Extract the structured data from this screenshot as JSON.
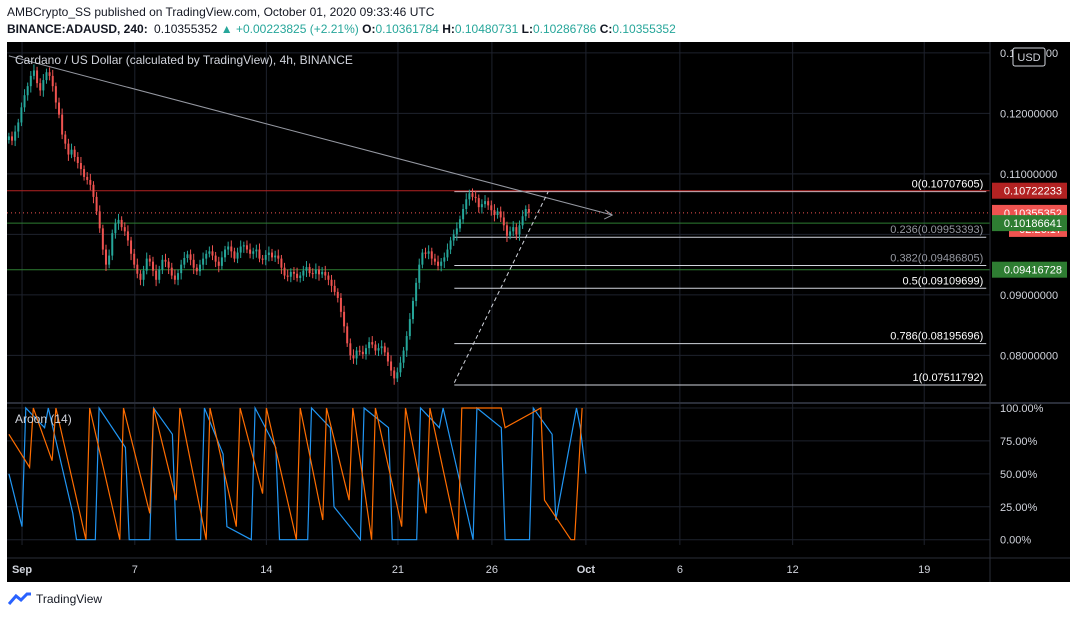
{
  "header": {
    "line1": "AMBCrypto_SS published on TradingView.com, October 01, 2020 09:33:46 UTC",
    "symbol": "BINANCE:ADAUSD, 240",
    "last": "0.10355352",
    "change": "▲ +0.00223825 (+2.21%)",
    "o_label": "O:",
    "o_value": "0.10361784",
    "h_label": "H:",
    "h_value": "0.10480731",
    "l_label": "L:",
    "l_value": "0.10286786",
    "c_label": "C:",
    "c_value": "0.10355352"
  },
  "chart": {
    "title": "Cardano / US Dollar (calculated by TradingView), 4h, BINANCE",
    "currency": "USD",
    "countdown": "02:26:17",
    "aroon_label": "Aroon (14)"
  },
  "footer": {
    "brand": "TradingView"
  },
  "colors": {
    "up": "#26a69a",
    "down": "#ef5350",
    "aroon_up": "#2196f3",
    "aroon_down": "#ff6d00",
    "resistance": "#b22222",
    "support": "#2e7d32"
  },
  "chart_data": [
    {
      "type": "candlestick",
      "title": "Cardano / US Dollar (calculated by TradingView), 4h, BINANCE",
      "x_axis": {
        "tick_labels": [
          "Sep",
          "7",
          "14",
          "21",
          "26",
          "Oct",
          "6",
          "12",
          "19"
        ],
        "tick_days": [
          1,
          7,
          14,
          21,
          26,
          31,
          36,
          42,
          49
        ],
        "range_days": [
          0.2,
          52.5
        ]
      },
      "y_axis": {
        "tick_labels": [
          "0.13000000",
          "0.12000000",
          "0.11000000",
          "0.09000000",
          "0.08000000"
        ],
        "ticks": [
          0.13,
          0.12,
          0.11,
          0.09,
          0.08
        ],
        "range": [
          0.0723,
          0.1318
        ]
      },
      "closes_4h": [
        0.1162,
        0.1155,
        0.117,
        0.1185,
        0.121,
        0.123,
        0.1245,
        0.1262,
        0.1271,
        0.125,
        0.1238,
        0.1255,
        0.1268,
        0.1262,
        0.1245,
        0.1218,
        0.1198,
        0.1165,
        0.115,
        0.1132,
        0.114,
        0.1128,
        0.1118,
        0.1108,
        0.1095,
        0.109,
        0.1082,
        0.1062,
        0.1038,
        0.101,
        0.0975,
        0.095,
        0.0965,
        0.1002,
        0.1018,
        0.1024,
        0.1012,
        0.1005,
        0.099,
        0.0968,
        0.095,
        0.0935,
        0.0925,
        0.094,
        0.096,
        0.0955,
        0.094,
        0.0925,
        0.0942,
        0.0958,
        0.0955,
        0.0945,
        0.0932,
        0.0925,
        0.0936,
        0.095,
        0.0961,
        0.0967,
        0.0958,
        0.0945,
        0.0939,
        0.095,
        0.096,
        0.0968,
        0.0972,
        0.0965,
        0.0955,
        0.0948,
        0.0962,
        0.0975,
        0.098,
        0.0972,
        0.096,
        0.097,
        0.098,
        0.0982,
        0.0975,
        0.0968,
        0.0972,
        0.0975,
        0.096,
        0.0958,
        0.0966,
        0.097,
        0.0962,
        0.0965,
        0.096,
        0.0945,
        0.0932,
        0.093,
        0.0938,
        0.0935,
        0.0928,
        0.0932,
        0.094,
        0.0946,
        0.0936,
        0.0935,
        0.0942,
        0.0934,
        0.0938,
        0.0932,
        0.0925,
        0.0915,
        0.0905,
        0.0895,
        0.0872,
        0.0848,
        0.082,
        0.08,
        0.0795,
        0.0808,
        0.0806,
        0.0802,
        0.0812,
        0.0822,
        0.0818,
        0.0808,
        0.0812,
        0.0815,
        0.0805,
        0.079,
        0.0775,
        0.0762,
        0.0772,
        0.0788,
        0.0808,
        0.0832,
        0.086,
        0.089,
        0.092,
        0.095,
        0.097,
        0.0968,
        0.0972,
        0.096,
        0.0955,
        0.0948,
        0.0955,
        0.0962,
        0.0975,
        0.099,
        0.1,
        0.101,
        0.1025,
        0.1042,
        0.1058,
        0.1068,
        0.1062,
        0.106,
        0.1045,
        0.105,
        0.1055,
        0.1048,
        0.104,
        0.1032,
        0.1038,
        0.1028,
        0.1015,
        0.0998,
        0.1005,
        0.1012,
        0.1,
        0.1015,
        0.103,
        0.1042,
        0.1036
      ],
      "fibonacci": [
        {
          "label": "0(0.10707605)",
          "value": 0.10707605
        },
        {
          "label": "0.236(0.09953393)",
          "value": 0.09953393
        },
        {
          "label": "0.382(0.09486805)",
          "value": 0.09486805
        },
        {
          "label": "0.5(0.09109699)",
          "value": 0.09109699
        },
        {
          "label": "0.786(0.08195696)",
          "value": 0.08195696
        },
        {
          "label": "1(0.07511792)",
          "value": 0.07511792
        }
      ],
      "horizontal_levels": [
        {
          "value": 0.10722233,
          "label": "0.10722233",
          "role": "resistance"
        },
        {
          "value": 0.10186641,
          "label": "0.10186641",
          "role": "support"
        },
        {
          "value": 0.09416728,
          "label": "0.09416728",
          "role": "support"
        }
      ],
      "last_price": {
        "value": 0.10355352,
        "label": "0.10355352"
      },
      "trendline": {
        "start_day": 0.3,
        "start_value": 0.1295,
        "end_day": 32.4,
        "end_value": 0.1032
      },
      "projection_line": [
        {
          "day": 24.0,
          "value": 0.0755
        },
        {
          "day": 29.0,
          "value": 0.1071
        }
      ]
    },
    {
      "type": "line",
      "title": "Aroon (14)",
      "y_axis": {
        "tick_labels": [
          "100.00%",
          "75.00%",
          "50.00%",
          "25.00%",
          "0.00%"
        ],
        "ticks": [
          100,
          75,
          50,
          25,
          0
        ],
        "range": [
          -4,
          103
        ]
      },
      "series": [
        {
          "name": "Aroon Up",
          "color": "#2196f3",
          "day": [
            0.3,
            1.0,
            1.2,
            2.2,
            2.4,
            3.7,
            3.9,
            4.9,
            5.1,
            6.5,
            6.7,
            7.8,
            8.0,
            9.0,
            9.2,
            10.5,
            10.7,
            11.7,
            11.9,
            13.2,
            13.4,
            14.5,
            14.7,
            16.2,
            16.4,
            17.4,
            17.6,
            19.0,
            19.2,
            20.5,
            20.7,
            22.0,
            22.2,
            23.2,
            23.4,
            25.0,
            25.2,
            26.5,
            26.7,
            28.0,
            28.2,
            29.2,
            29.4,
            30.5,
            30.7,
            31.0
          ],
          "values": [
            50,
            10,
            100,
            85,
            100,
            20,
            0,
            0,
            100,
            70,
            0,
            0,
            100,
            80,
            0,
            0,
            100,
            65,
            10,
            0,
            100,
            70,
            0,
            0,
            100,
            85,
            25,
            0,
            100,
            85,
            0,
            0,
            100,
            85,
            100,
            0,
            100,
            85,
            0,
            0,
            100,
            80,
            15,
            100,
            85,
            50
          ]
        },
        {
          "name": "Aroon Down",
          "color": "#ff6d00",
          "day": [
            0.3,
            1.4,
            1.6,
            2.6,
            2.8,
            4.4,
            4.6,
            6.2,
            6.4,
            7.8,
            8.0,
            9.2,
            9.4,
            10.8,
            11.0,
            12.4,
            12.6,
            13.8,
            14.0,
            15.6,
            15.8,
            17.0,
            17.2,
            18.4,
            18.6,
            19.6,
            19.8,
            21.2,
            21.4,
            22.5,
            22.7,
            24.2,
            24.4,
            26.5,
            26.7,
            28.6,
            28.8,
            30.2,
            30.4,
            30.8
          ],
          "values": [
            80,
            55,
            100,
            60,
            100,
            0,
            100,
            0,
            100,
            20,
            100,
            30,
            100,
            0,
            100,
            10,
            100,
            35,
            100,
            0,
            100,
            15,
            100,
            30,
            100,
            0,
            100,
            10,
            100,
            20,
            100,
            0,
            100,
            100,
            85,
            100,
            30,
            0,
            0,
            100
          ]
        }
      ]
    }
  ]
}
